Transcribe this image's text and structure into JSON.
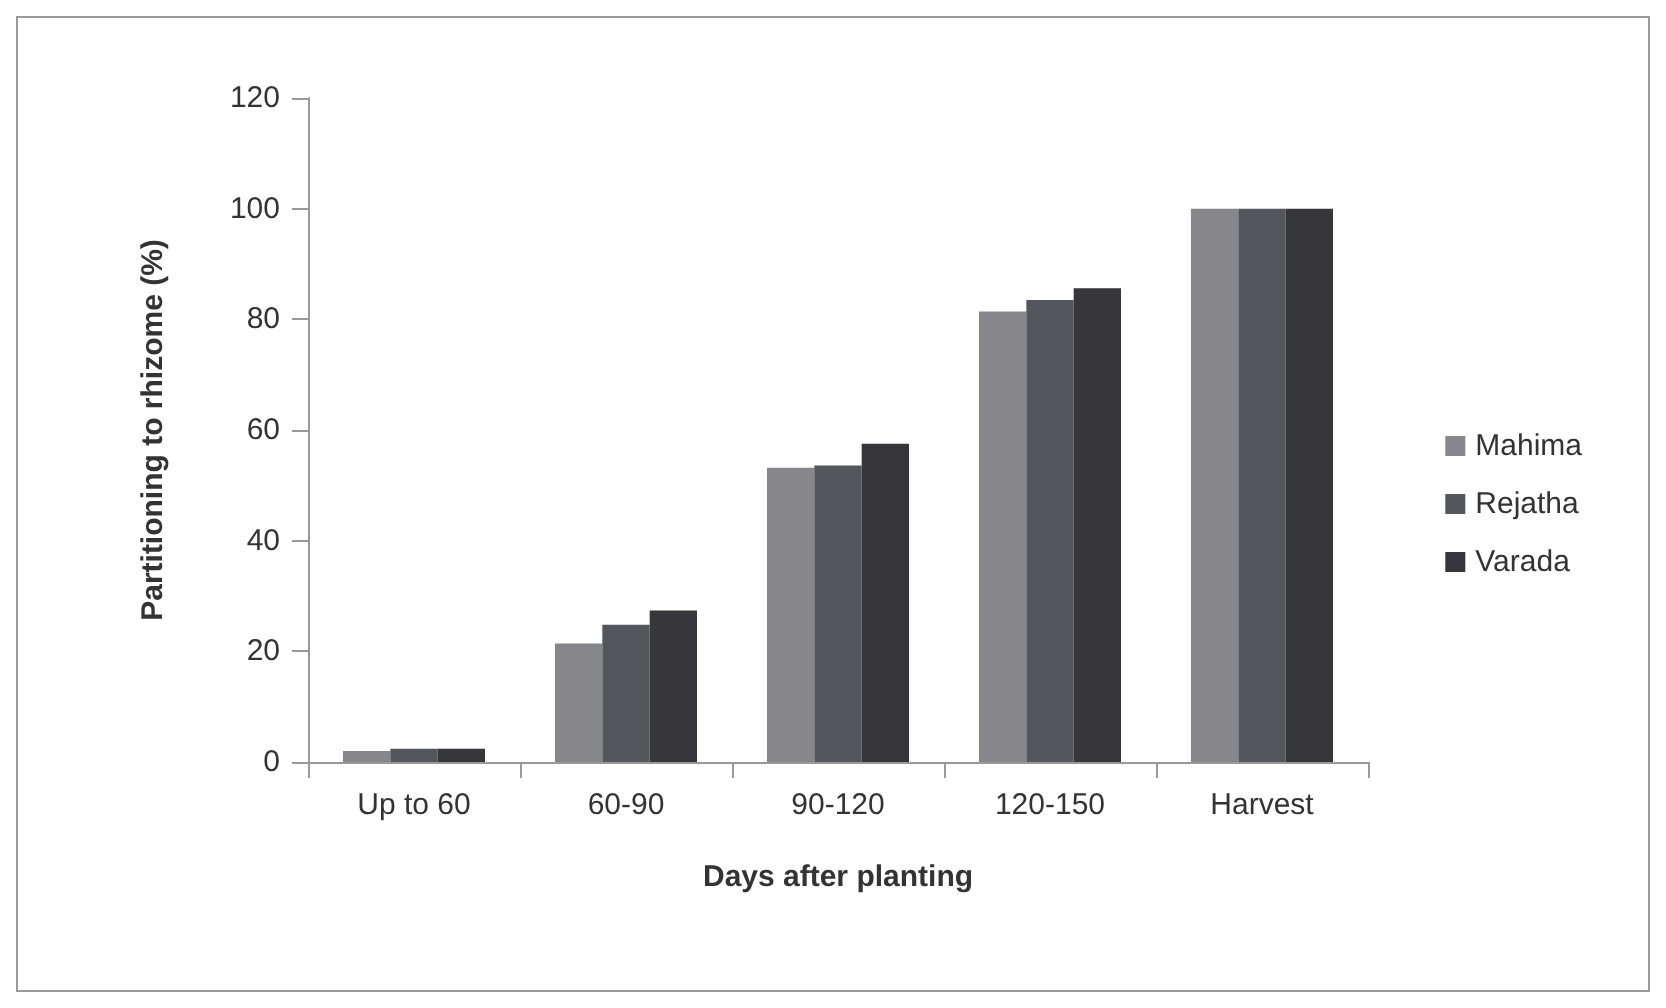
{
  "chart_data": {
    "type": "bar",
    "xlabel": "Days after planting",
    "ylabel": "Partitioning to rhizome (%)",
    "categories": [
      "Up to 60",
      "60-90",
      "90-120",
      "120-150",
      "Harvest"
    ],
    "series": [
      {
        "name": "Mahima",
        "color": "#87878b",
        "values": [
          2.0,
          21.4,
          53.2,
          81.4,
          100
        ]
      },
      {
        "name": "Rejatha",
        "color": "#55565b",
        "values": [
          2.4,
          24.8,
          53.6,
          83.5,
          100
        ]
      },
      {
        "name": "Varada",
        "color": "#36363b",
        "values": [
          2.4,
          27.4,
          57.5,
          85.6,
          100
        ]
      }
    ],
    "ylim": [
      0,
      120
    ],
    "yticks": [
      0,
      20,
      40,
      60,
      80,
      100,
      120
    ],
    "grid": false,
    "legend": "right"
  }
}
